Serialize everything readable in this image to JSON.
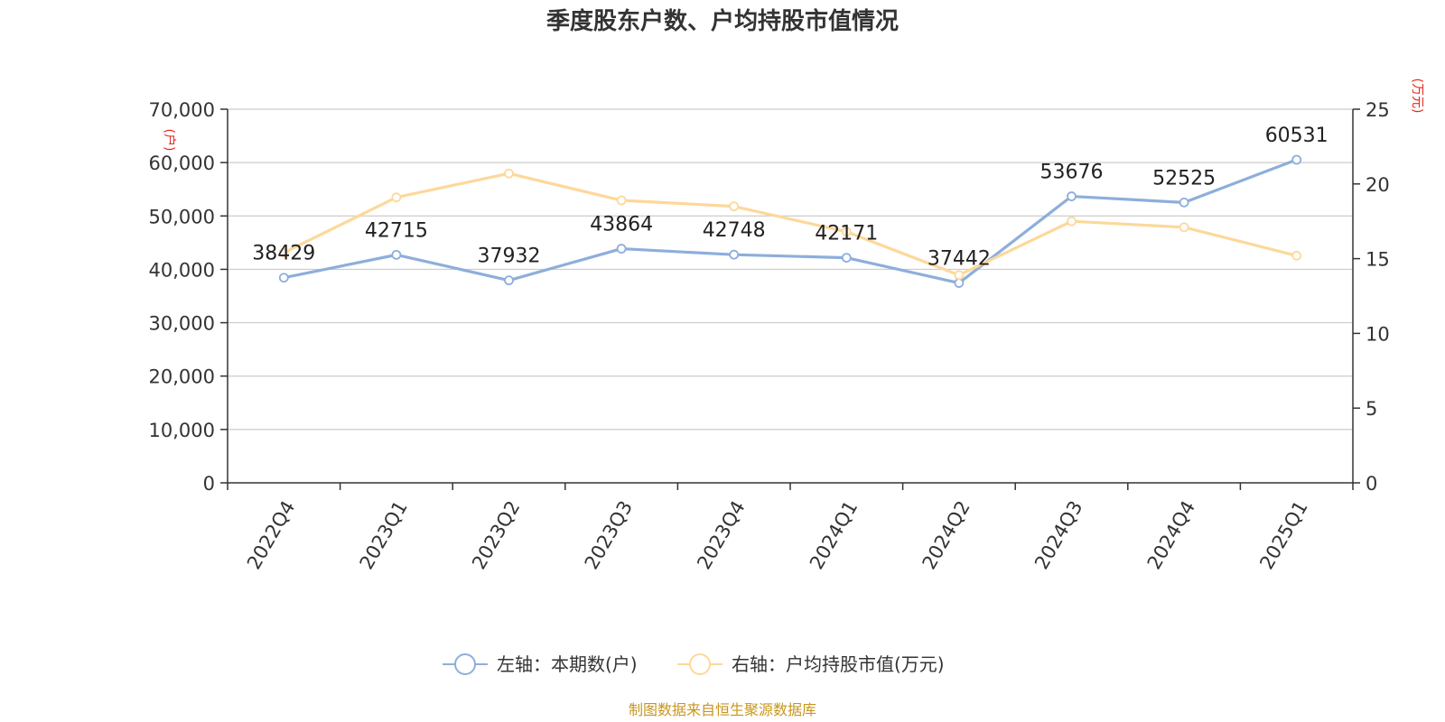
{
  "chart_data": {
    "type": "line",
    "title": "季度股东户数、户均持股市值情况",
    "categories": [
      "2022Q4",
      "2023Q1",
      "2023Q2",
      "2023Q3",
      "2023Q4",
      "2024Q1",
      "2024Q2",
      "2024Q3",
      "2024Q4",
      "2025Q1"
    ],
    "left_axis": {
      "unit": "(户)",
      "ylim": [
        0,
        70000
      ],
      "ticks": [
        0,
        10000,
        20000,
        30000,
        40000,
        50000,
        60000,
        70000
      ],
      "tick_labels": [
        "0",
        "10,000",
        "20,000",
        "30,000",
        "40,000",
        "50,000",
        "60,000",
        "70,000"
      ]
    },
    "right_axis": {
      "unit": "(万元)",
      "ylim": [
        0,
        25
      ],
      "ticks": [
        0,
        5,
        10,
        15,
        20,
        25
      ],
      "tick_labels": [
        "0",
        "5",
        "10",
        "15",
        "20",
        "25"
      ]
    },
    "grid": true,
    "legend_position": "bottom",
    "series": [
      {
        "name": "左轴：本期数(户)",
        "axis": "left",
        "color": "#8eaedb",
        "values": [
          38429,
          42715,
          37932,
          43864,
          42748,
          42171,
          37442,
          53676,
          52525,
          60531
        ],
        "labels": [
          "38429",
          "42715",
          "37932",
          "43864",
          "42748",
          "42171",
          "37442",
          "53676",
          "52525",
          "60531"
        ]
      },
      {
        "name": "右轴：户均持股市值(万元)",
        "axis": "right",
        "color": "#fdd89a",
        "values": [
          15.4,
          19.1,
          20.7,
          18.9,
          18.5,
          16.8,
          13.9,
          17.5,
          17.1,
          15.2
        ]
      }
    ]
  },
  "source": "制图数据来自恒生聚源数据库"
}
